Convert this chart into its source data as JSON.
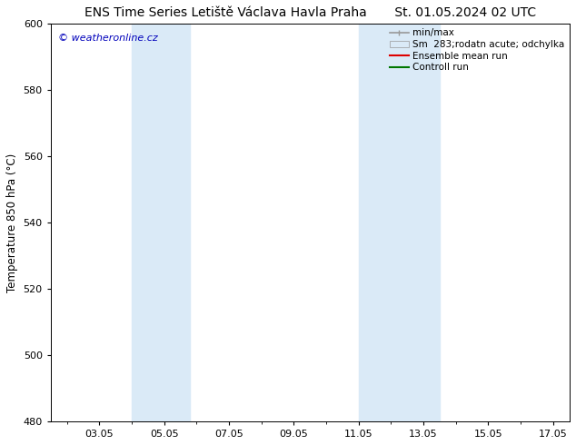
{
  "title": "ENS Time Series Letiště Václava Havla Praha       St. 01.05.2024 02 UTC",
  "ylabel": "Temperature 850 hPa (°C)",
  "watermark": "© weatheronline.cz",
  "watermark_color": "#0000bb",
  "ylim": [
    480,
    600
  ],
  "yticks": [
    480,
    500,
    520,
    540,
    560,
    580,
    600
  ],
  "xlim_start": 1.5,
  "xlim_end": 17.5,
  "xtick_labels": [
    "03.05",
    "05.05",
    "07.05",
    "09.05",
    "11.05",
    "13.05",
    "15.05",
    "17.05"
  ],
  "xtick_positions": [
    3.0,
    5.0,
    7.0,
    9.0,
    11.0,
    13.0,
    15.0,
    17.0
  ],
  "shaded_regions": [
    {
      "x_start": 4.0,
      "x_end": 5.8,
      "color": "#daeaf7"
    },
    {
      "x_start": 11.0,
      "x_end": 13.5,
      "color": "#daeaf7"
    }
  ],
  "legend_entries": [
    {
      "label": "min/max",
      "color": "#999999",
      "linewidth": 1.2
    },
    {
      "label": "Sm  283;rodatn acute; odchylka",
      "patch_color": "#daeaf7",
      "edge_color": "#999999"
    },
    {
      "label": "Ensemble mean run",
      "color": "#dd0000",
      "linewidth": 1.5
    },
    {
      "label": "Controll run",
      "color": "#007700",
      "linewidth": 1.5
    }
  ],
  "bg_color": "#ffffff",
  "plot_bg_color": "#ffffff",
  "title_fontsize": 10,
  "axis_fontsize": 8.5,
  "tick_fontsize": 8,
  "legend_fontsize": 7.5
}
